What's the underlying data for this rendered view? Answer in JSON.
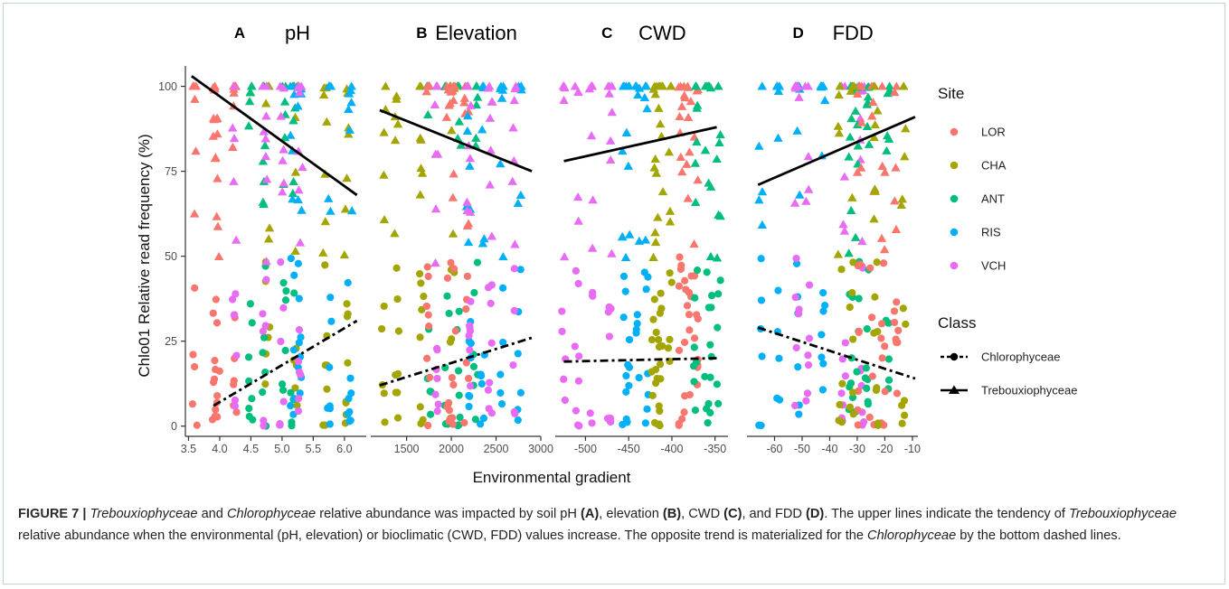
{
  "colors": {
    "LOR": "#F8766D",
    "CHA": "#A3A500",
    "ANT": "#00BF7D",
    "RIS": "#00B0F6",
    "VCH": "#E76BF3",
    "frame": "#b9d3e4",
    "line": "#000000",
    "axis": "#333333"
  },
  "chart_data": {
    "type": "scatter",
    "ylabel": "Chlo01 Relative read frequency (%)",
    "xlabel": "Environmental gradient",
    "ylim": [
      -3,
      106
    ],
    "yticks": [
      0,
      25,
      50,
      75,
      100
    ],
    "legend": {
      "placement": "right",
      "site_title": "Site",
      "sites": [
        "LOR",
        "CHA",
        "ANT",
        "RIS",
        "VCH"
      ],
      "class_title": "Class",
      "classes": [
        {
          "name": "Chlorophyceae",
          "marker": "circle",
          "dash": "dashed"
        },
        {
          "name": "Trebouxiophyceae",
          "marker": "triangle",
          "dash": "solid"
        }
      ]
    },
    "panels": [
      {
        "letter": "A",
        "title": "pH",
        "xlim": [
          3.45,
          6.35
        ],
        "xticks": [
          3.5,
          4.0,
          4.5,
          5.0,
          5.5,
          6.0
        ],
        "xticklabels": [
          "3.5",
          "4.0",
          "4.5",
          "5.0",
          "5.5",
          "6.0"
        ],
        "sites": [
          {
            "site": "LOR",
            "x": [
              3.6,
              4.3
            ]
          },
          {
            "site": "CHA",
            "x": [
              4.6,
              6.3
            ]
          },
          {
            "site": "ANT",
            "x": [
              4.3,
              5.4
            ]
          },
          {
            "site": "RIS",
            "x": [
              4.9,
              6.2
            ]
          },
          {
            "site": "VCH",
            "x": [
              4.2,
              5.5
            ]
          }
        ],
        "treb_fit": [
          [
            3.55,
            103
          ],
          [
            6.2,
            68
          ]
        ],
        "chloro_fit": [
          [
            3.9,
            6
          ],
          [
            6.2,
            31
          ]
        ]
      },
      {
        "letter": "B",
        "title": "Elevation",
        "xlim": [
          1100,
          3000
        ],
        "xticks": [
          1500,
          2000,
          2500,
          3000
        ],
        "xticklabels": [
          "1500",
          "2000",
          "2500",
          "3000"
        ],
        "sites": [
          {
            "site": "CHA",
            "x": [
              1150,
              2100
            ]
          },
          {
            "site": "ANT",
            "x": [
              1600,
              2400
            ]
          },
          {
            "site": "LOR",
            "x": [
              1700,
              2300
            ]
          },
          {
            "site": "RIS",
            "x": [
              2100,
              2900
            ]
          },
          {
            "site": "VCH",
            "x": [
              1800,
              2900
            ]
          }
        ],
        "treb_fit": [
          [
            1200,
            93
          ],
          [
            2900,
            75
          ]
        ],
        "chloro_fit": [
          [
            1200,
            12
          ],
          [
            2900,
            26
          ]
        ]
      },
      {
        "letter": "C",
        "title": "CWD",
        "xlim": [
          -535,
          -335
        ],
        "xticks": [
          -500,
          -450,
          -400,
          -350
        ],
        "xticklabels": [
          "-500",
          "-450",
          "-400",
          "-350"
        ],
        "sites": [
          {
            "site": "VCH",
            "x": [
              -525,
              -470
            ]
          },
          {
            "site": "RIS",
            "x": [
              -465,
              -420
            ]
          },
          {
            "site": "CHA",
            "x": [
              -425,
              -400
            ]
          },
          {
            "site": "LOR",
            "x": [
              -390,
              -370
            ]
          },
          {
            "site": "ANT",
            "x": [
              -375,
              -340
            ]
          }
        ],
        "treb_fit": [
          [
            -525,
            78
          ],
          [
            -348,
            88
          ]
        ],
        "chloro_fit": [
          [
            -525,
            19
          ],
          [
            -348,
            20
          ]
        ]
      },
      {
        "letter": "D",
        "title": "FDD",
        "xlim": [
          -70,
          -8
        ],
        "xticks": [
          -60,
          -50,
          -40,
          -30,
          -20,
          -10
        ],
        "xticklabels": [
          "-60",
          "-50",
          "-40",
          "-30",
          "-20",
          "-10"
        ],
        "sites": [
          {
            "site": "RIS",
            "x": [
              -66,
              -38
            ]
          },
          {
            "site": "VCH",
            "x": [
              -56,
              -25
            ]
          },
          {
            "site": "ANT",
            "x": [
              -36,
              -18
            ]
          },
          {
            "site": "LOR",
            "x": [
              -32,
              -12
            ]
          },
          {
            "site": "CHA",
            "x": [
              -40,
              -9
            ]
          }
        ],
        "treb_fit": [
          [
            -66,
            71
          ],
          [
            -9,
            91
          ]
        ],
        "chloro_fit": [
          [
            -66,
            29
          ],
          [
            -9,
            14
          ]
        ]
      }
    ]
  },
  "caption": {
    "label": "FIGURE 7 |",
    "treb": "Trebouxiophyceae",
    "and": " and ",
    "chloro": "Chlorophyceae",
    "p1": " relative abundance was impacted by soil pH ",
    "refA": "(A)",
    "p2": ", elevation ",
    "refB": "(B)",
    "p3": ", CWD ",
    "refC": "(C)",
    "p4": ", and FDD ",
    "refD": "(D)",
    "p5": ". The upper lines indicate the tendency of ",
    "treb2": "Trebouxiophyceae",
    "p6": " relative abundance when the environmental (pH, elevation) or bioclimatic (CWD, FDD) values increase. The opposite trend is materialized for the ",
    "chloro2": "Chlorophyceae",
    "p7": " by the bottom dashed lines."
  }
}
